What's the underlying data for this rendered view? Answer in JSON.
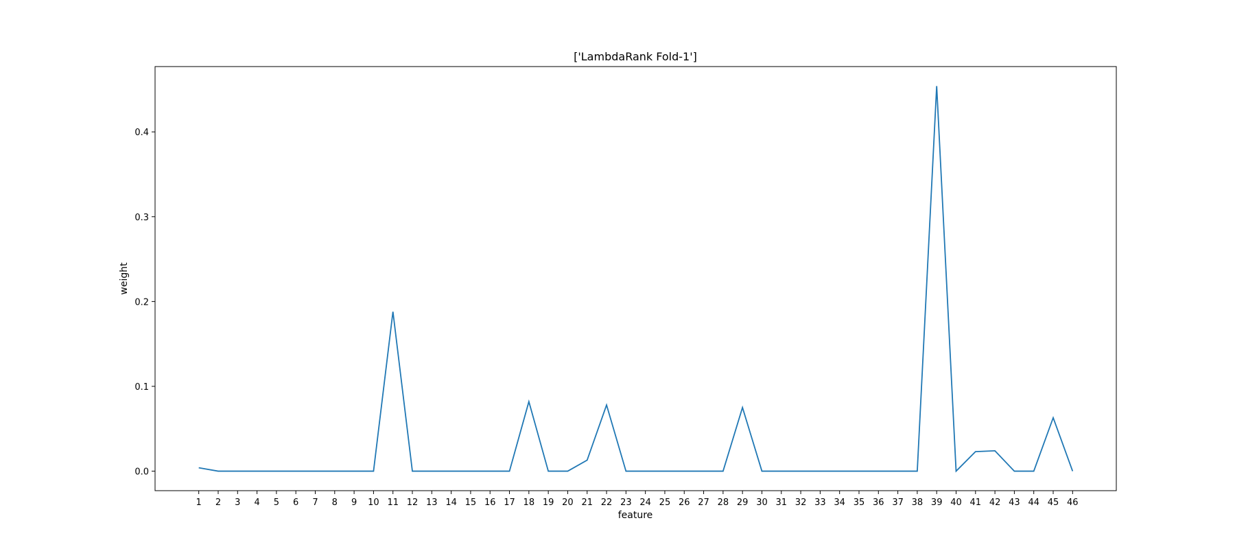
{
  "chart_data": {
    "type": "line",
    "title": "['LambdaRank Fold-1']",
    "xlabel": "feature",
    "ylabel": "weight",
    "x": [
      1,
      2,
      3,
      4,
      5,
      6,
      7,
      8,
      9,
      10,
      11,
      12,
      13,
      14,
      15,
      16,
      17,
      18,
      19,
      20,
      21,
      22,
      23,
      24,
      25,
      26,
      27,
      28,
      29,
      30,
      31,
      32,
      33,
      34,
      35,
      36,
      37,
      38,
      39,
      40,
      41,
      42,
      43,
      44,
      45,
      46
    ],
    "series": [
      {
        "values": [
          0.004,
          0,
          0,
          0,
          0,
          0,
          0,
          0,
          0,
          0,
          0.188,
          0,
          0,
          0,
          0,
          0,
          0,
          0.082,
          0,
          0,
          0.013,
          0.078,
          0,
          0,
          0,
          0,
          0,
          0,
          0.075,
          0,
          0,
          0,
          0,
          0,
          0,
          0,
          0,
          0,
          0.454,
          0,
          0.023,
          0.024,
          0,
          0,
          0.063,
          0
        ]
      }
    ],
    "xlim": [
      -1.25,
      48.25
    ],
    "ylim": [
      -0.023,
      0.477
    ],
    "yticks": [
      0.0,
      0.1,
      0.2,
      0.3,
      0.4
    ],
    "ytick_labels": [
      "0.0",
      "0.1",
      "0.2",
      "0.3",
      "0.4"
    ],
    "line_color": "#1f77b4",
    "grid": false,
    "legend": "none"
  }
}
